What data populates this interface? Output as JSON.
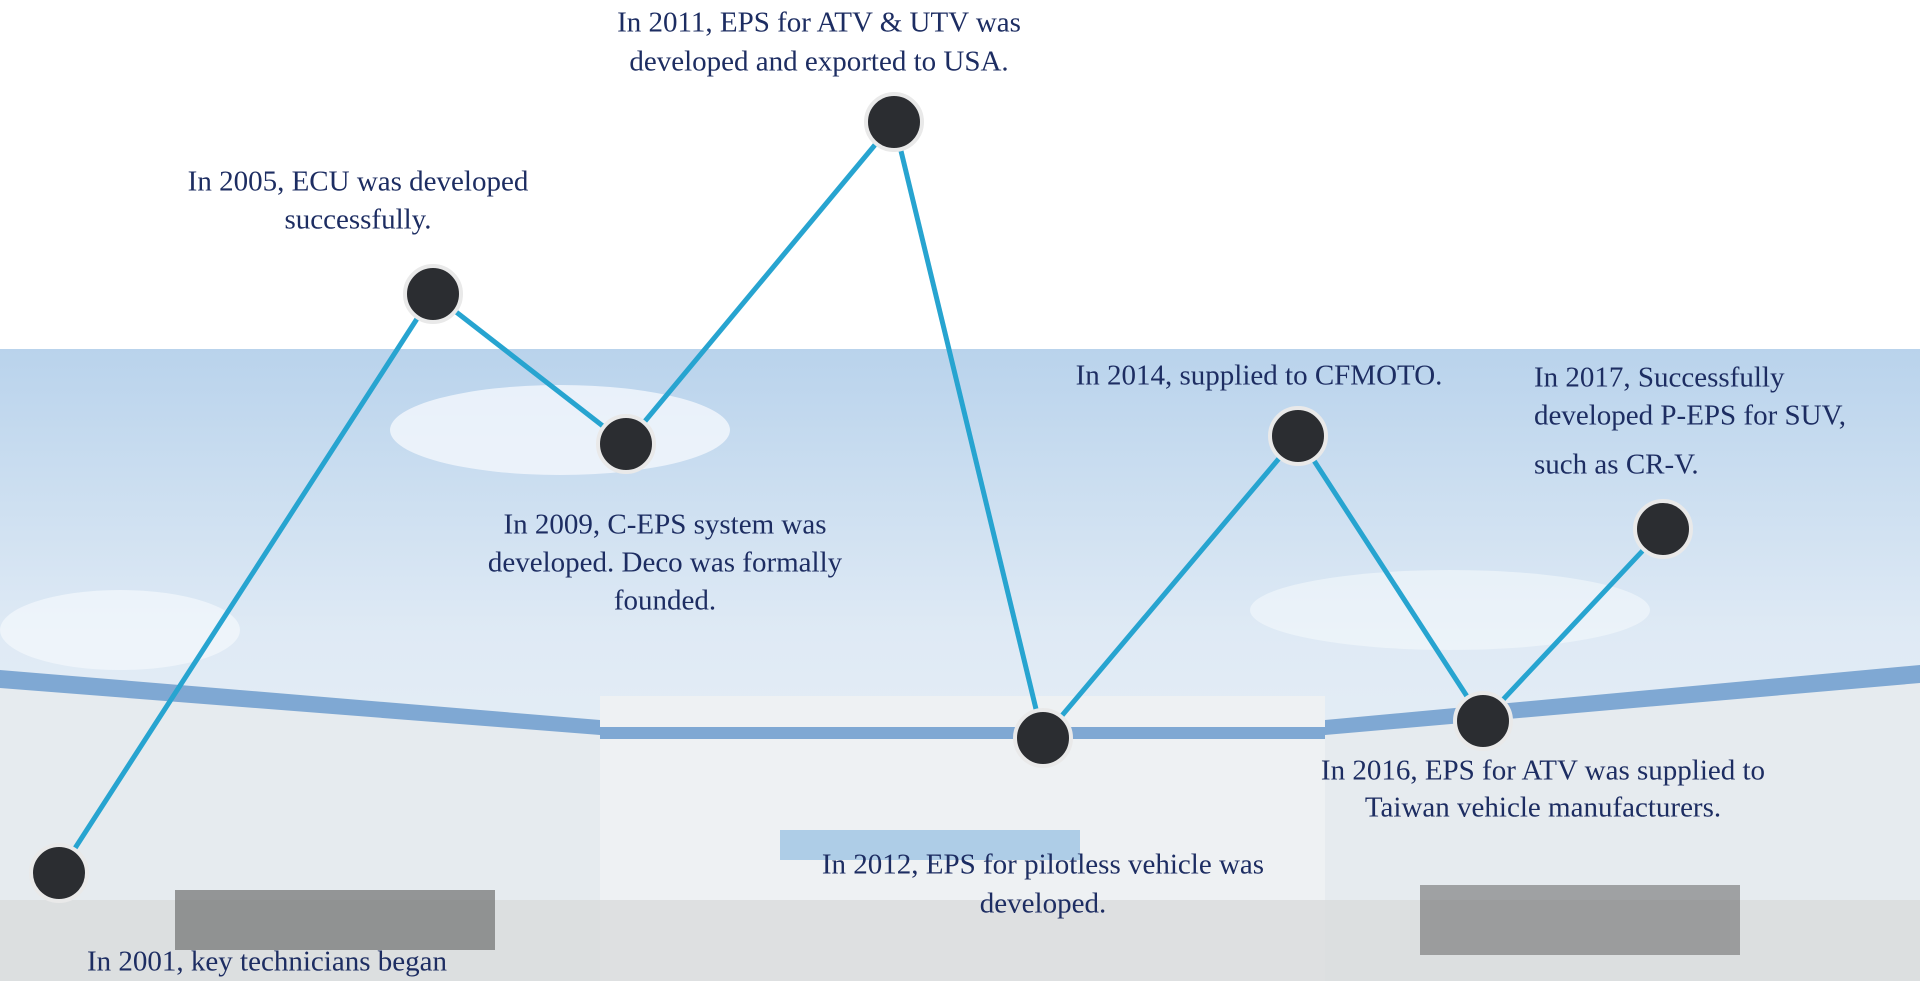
{
  "milestones": [
    {
      "lines": [
        "In 2001, key technicians began"
      ]
    },
    {
      "lines": [
        "In 2005, ECU was developed",
        "successfully."
      ]
    },
    {
      "lines": [
        "In 2009, C-EPS system was",
        "developed. Deco was formally",
        "founded."
      ]
    },
    {
      "lines": [
        "In 2011,  EPS for ATV & UTV was",
        "developed and exported to USA."
      ]
    },
    {
      "lines": [
        "In 2012, EPS for pilotless vehicle was",
        "developed."
      ]
    },
    {
      "lines": [
        "In 2014,  supplied to CFMOTO."
      ]
    },
    {
      "lines": [
        "In 2016, EPS for ATV was supplied to",
        "Taiwan vehicle manufacturers."
      ]
    },
    {
      "lines": [
        "In 2017, Successfully",
        "developed P-EPS for SUV,",
        "such as CR-V."
      ]
    }
  ]
}
